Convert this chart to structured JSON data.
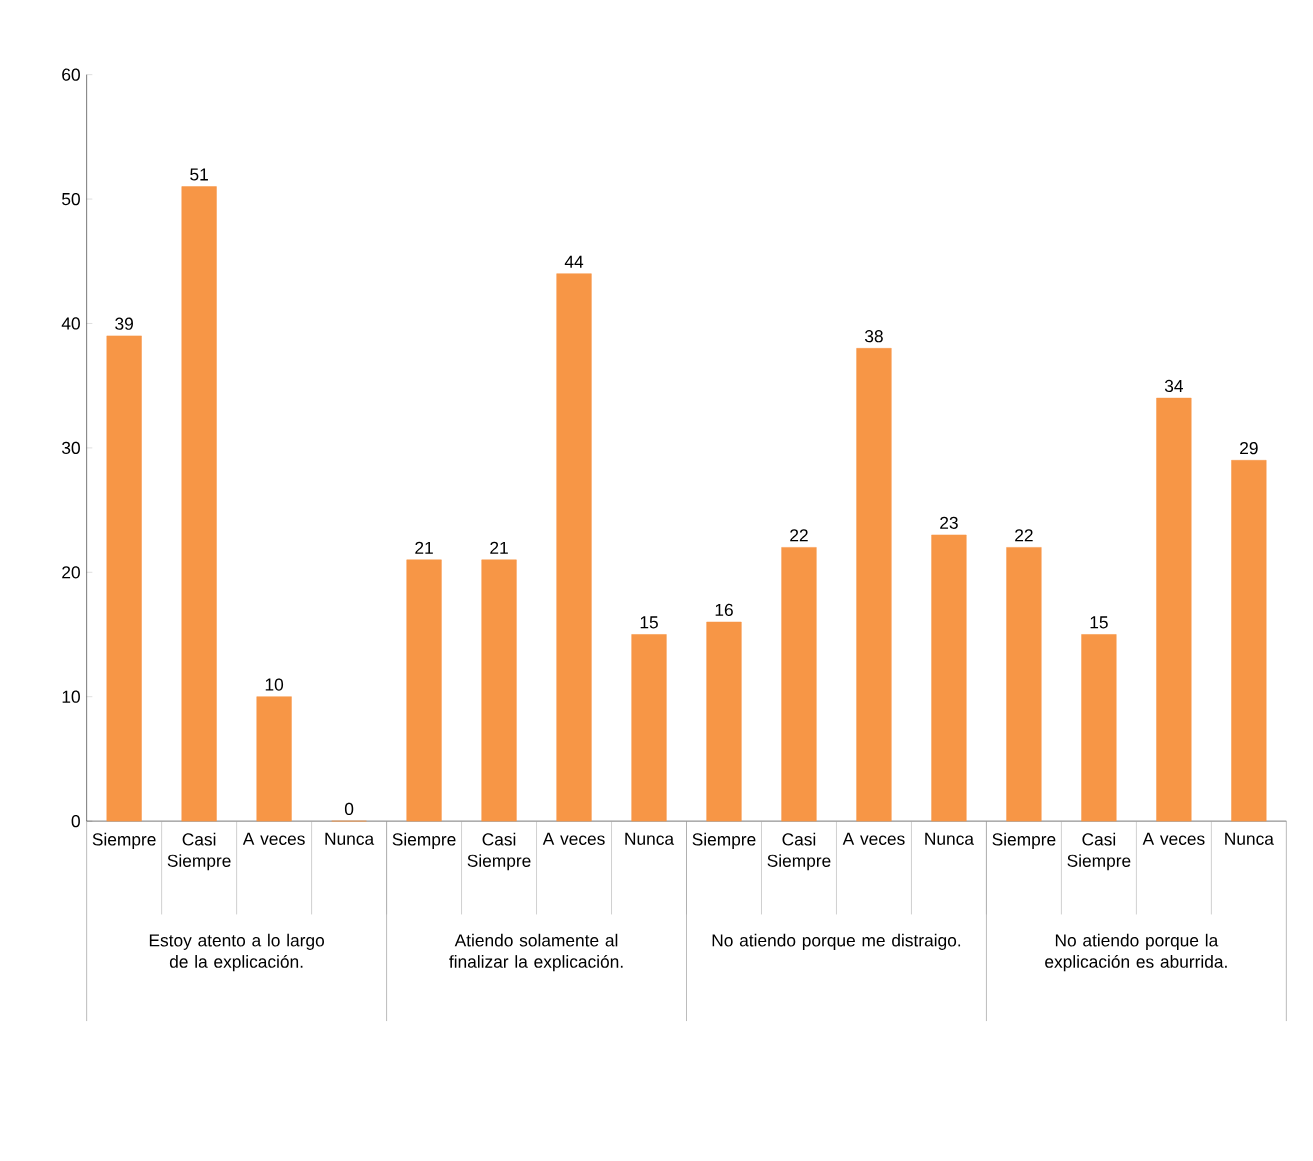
{
  "chart_data": {
    "type": "bar",
    "categories": [
      "Siempre",
      "Casi Siempre",
      "A veces",
      "Nunca",
      "Siempre",
      "Casi Siempre",
      "A veces",
      "Nunca",
      "Siempre",
      "Casi Siempre",
      "A veces",
      "Nunca",
      "Siempre",
      "Casi Siempre",
      "A veces",
      "Nunca"
    ],
    "values": [
      39,
      51,
      10,
      0,
      21,
      21,
      44,
      15,
      16,
      22,
      38,
      23,
      22,
      15,
      34,
      29
    ],
    "color": "#f79646",
    "ylim": [
      0,
      60
    ],
    "yticks": [
      0,
      10,
      20,
      30,
      40,
      50,
      60
    ],
    "data_labels": true,
    "annotations": [
      "Estoy atento a lo largo de  la explicación.",
      "Atiendo solamente al finalizar la explicación.",
      "No atiendo porque me distraigo.",
      "No atiendo porque la explicación es aburrida."
    ]
  }
}
